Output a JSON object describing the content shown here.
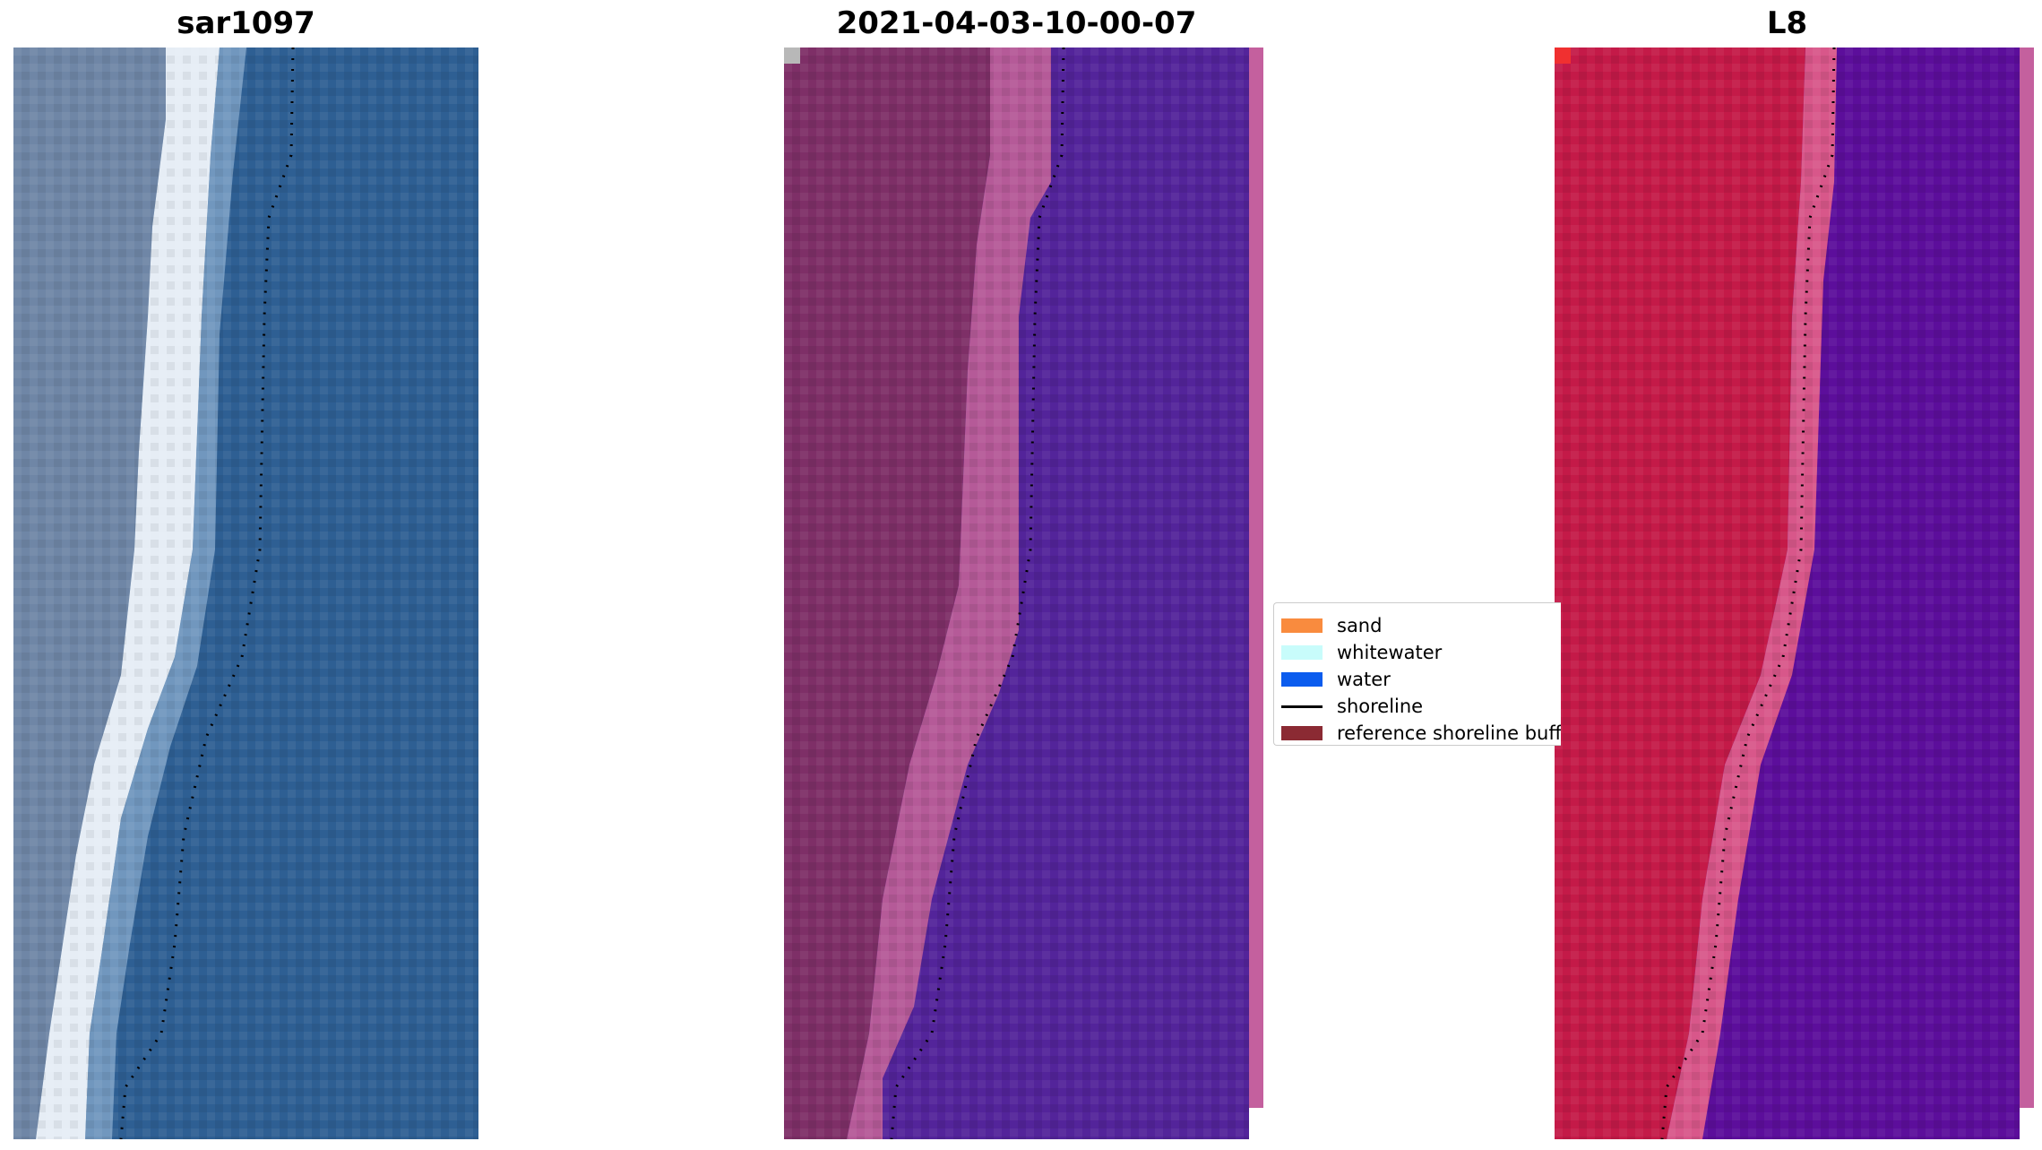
{
  "panels": [
    {
      "title": "sar1097"
    },
    {
      "title": "2021-04-03-10-00-07"
    },
    {
      "title": "L8"
    }
  ],
  "legend": {
    "items": [
      {
        "label": "sand",
        "color": "#f98b3e",
        "kind": "patch"
      },
      {
        "label": "whitewater",
        "color": "#c8fcfb",
        "kind": "patch"
      },
      {
        "label": "water",
        "color": "#0b5cee",
        "kind": "patch"
      },
      {
        "label": "shoreline",
        "color": "#000000",
        "kind": "line"
      },
      {
        "label": "reference shoreline buffer",
        "color": "#8b2a33",
        "kind": "patch"
      }
    ]
  },
  "colors": {
    "rgb_land": "#6f86a6",
    "rgb_beach": "#e6edf5",
    "rgb_water": "#2e5f93",
    "mid_land": "#7e2f67",
    "mid_beach": "#b55a98",
    "mid_water": "#53249a",
    "right_land": "#c41a48",
    "right_beach": "#d8578a",
    "right_water": "#5c0e9b"
  }
}
